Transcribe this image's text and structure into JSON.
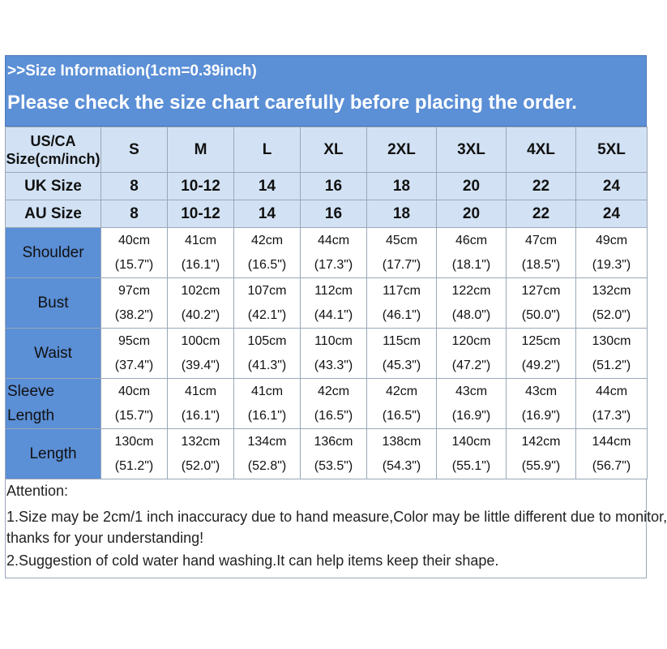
{
  "banner": {
    "info": ">>Size Information(1cm=0.39inch)",
    "notice": "Please check the size chart carefully before placing the order."
  },
  "header": {
    "label": "US/CA Size(cm/inch)",
    "sizes": [
      "S",
      "M",
      "L",
      "XL",
      "2XL",
      "3XL",
      "4XL",
      "5XL"
    ]
  },
  "uk": {
    "label": "UK Size",
    "values": [
      "8",
      "10-12",
      "14",
      "16",
      "18",
      "20",
      "22",
      "24"
    ]
  },
  "au": {
    "label": "AU Size",
    "values": [
      "8",
      "10-12",
      "14",
      "16",
      "18",
      "20",
      "22",
      "24"
    ]
  },
  "measurements": [
    {
      "label": "Shoulder",
      "cm": [
        "40cm",
        "41cm",
        "42cm",
        "44cm",
        "45cm",
        "46cm",
        "47cm",
        "49cm"
      ],
      "inch": [
        "(15.7\")",
        "(16.1\")",
        "(16.5\")",
        "(17.3\")",
        "(17.7\")",
        "(18.1\")",
        "(18.5\")",
        "(19.3\")"
      ]
    },
    {
      "label": "Bust",
      "cm": [
        "97cm",
        "102cm",
        "107cm",
        "112cm",
        "117cm",
        "122cm",
        "127cm",
        "132cm"
      ],
      "inch": [
        "(38.2\")",
        "(40.2\")",
        "(42.1\")",
        "(44.1\")",
        "(46.1\")",
        "(48.0\")",
        "(50.0\")",
        "(52.0\")"
      ]
    },
    {
      "label": "Waist",
      "cm": [
        "95cm",
        "100cm",
        "105cm",
        "110cm",
        "115cm",
        "120cm",
        "125cm",
        "130cm"
      ],
      "inch": [
        "(37.4\")",
        "(39.4\")",
        "(41.3\")",
        "(43.3\")",
        "(45.3\")",
        "(47.2\")",
        "(49.2\")",
        "(51.2\")"
      ]
    },
    {
      "label": "Sleeve Length",
      "cm": [
        "40cm",
        "41cm",
        "41cm",
        "42cm",
        "42cm",
        "43cm",
        "43cm",
        "44cm"
      ],
      "inch": [
        "(15.7\")",
        "(16.1\")",
        "(16.1\")",
        "(16.5\")",
        "(16.5\")",
        "(16.9\")",
        "(16.9\")",
        "(17.3\")"
      ]
    },
    {
      "label": "Length",
      "cm": [
        "130cm",
        "132cm",
        "134cm",
        "136cm",
        "138cm",
        "140cm",
        "142cm",
        "144cm"
      ],
      "inch": [
        "(51.2\")",
        "(52.0\")",
        "(52.8\")",
        "(53.5\")",
        "(54.3\")",
        "(55.1\")",
        "(55.9\")",
        "(56.7\")"
      ]
    }
  ],
  "notes": {
    "title": "Attention:",
    "line1": "1.Size may be 2cm/1 inch inaccuracy due to hand measure,Color may be little different due to monitor,",
    "line2": "thanks for your understanding!",
    "line3": "2.Suggestion of cold water hand washing.It can help items keep their shape."
  },
  "colors": {
    "banner": "#5b8fd6",
    "header_row": "#d2e2f4",
    "grid": "#9aa7b8"
  }
}
